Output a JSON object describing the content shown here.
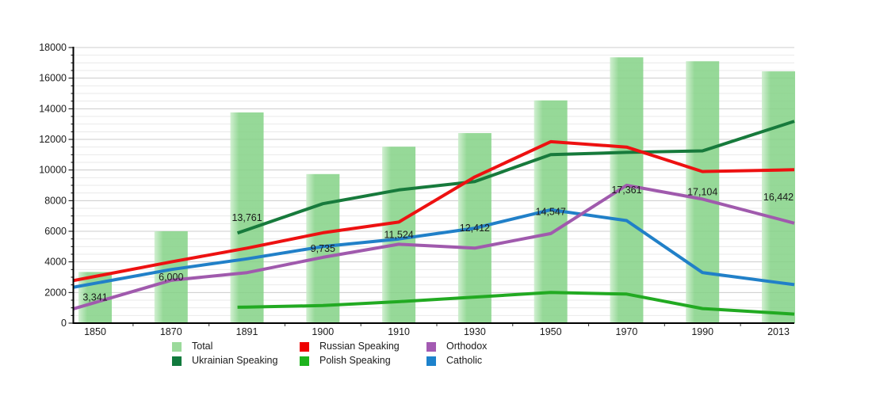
{
  "chart_data": {
    "type": "bar+line",
    "categories": [
      "1850",
      "1870",
      "1891",
      "1900",
      "1910",
      "1930",
      "1950",
      "1970",
      "1990",
      "2013"
    ],
    "bar_series": {
      "name": "Total",
      "values": [
        3341,
        6000,
        13761,
        9735,
        11524,
        12412,
        14547,
        17361,
        17104,
        16442
      ],
      "labels": [
        "3,341",
        "6,000",
        "13,761",
        "9,735",
        "11,524",
        "12,412",
        "14,547",
        "17,361",
        "17,104",
        "16,442"
      ],
      "color": "#84d286",
      "edge_highlight_color": "#c9edc9"
    },
    "line_series": [
      {
        "name": "Ukrainian Speaking",
        "color": "#177a3c",
        "values": [
          null,
          null,
          6100,
          7800,
          8700,
          9250,
          11000,
          11150,
          11250,
          12850
        ]
      },
      {
        "name": "Polish Speaking",
        "color": "#22aa22",
        "values": [
          null,
          null,
          1050,
          1150,
          1400,
          1700,
          2000,
          1900,
          950,
          650
        ]
      },
      {
        "name": "Catholic",
        "color": "#2180c8",
        "values": [
          2600,
          3500,
          4200,
          5000,
          5500,
          6200,
          7400,
          6700,
          3300,
          2650
        ]
      },
      {
        "name": "Orthodox",
        "color": "#a05aad",
        "values": [
          1350,
          2800,
          3300,
          4300,
          5150,
          4900,
          5850,
          9000,
          8100,
          6800
        ]
      },
      {
        "name": "Russian Speaking",
        "color": "#ed1111",
        "values": [
          3050,
          4000,
          4900,
          5900,
          6600,
          9550,
          11850,
          11500,
          9900,
          10000
        ]
      }
    ],
    "y_axis": {
      "min": 0,
      "max": 18000,
      "major_step": 2000,
      "minor_step": 500,
      "tick_labels": [
        "0",
        "2000",
        "4000",
        "6000",
        "8000",
        "10000",
        "12000",
        "14000",
        "16000",
        "18000"
      ]
    },
    "grid": true,
    "legend": {
      "position": "bottom",
      "items": [
        {
          "label": "Total",
          "color": "#9bda9b"
        },
        {
          "label": "Russian Speaking",
          "color": "#ee0000"
        },
        {
          "label": "Orthodox",
          "color": "#a35ab2"
        },
        {
          "label": "Ukrainian Speaking",
          "color": "#117a3d"
        },
        {
          "label": "Polish Speaking",
          "color": "#1db31d"
        },
        {
          "label": "Catholic",
          "color": "#1d82cc"
        }
      ]
    }
  }
}
